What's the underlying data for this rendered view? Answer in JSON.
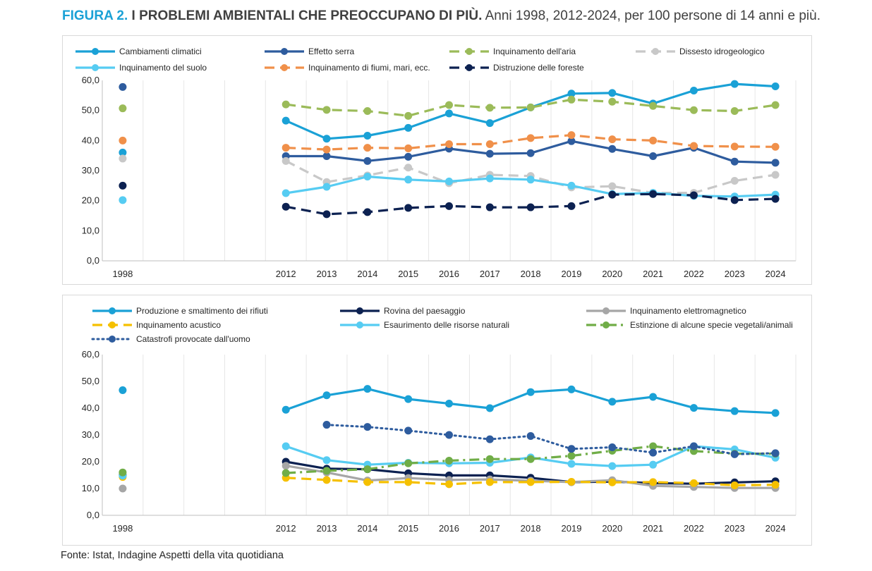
{
  "figure": {
    "label": "FIGURA 2.",
    "title": "I PROBLEMI AMBIENTALI CHE PREOCCUPANO DI PIÙ.",
    "subtitle": "Anni 1998, 2012-2024, per 100 persone di 14 anni e più."
  },
  "source": "Fonte: Istat, Indagine Aspetti della vita quotidiana",
  "chart_data": [
    {
      "type": "line",
      "x": [
        "1998",
        "2012",
        "2013",
        "2014",
        "2015",
        "2016",
        "2017",
        "2018",
        "2019",
        "2020",
        "2021",
        "2022",
        "2023",
        "2024"
      ],
      "ylim": [
        0,
        60
      ],
      "yticks": [
        "0,0",
        "10,0",
        "20,0",
        "30,0",
        "40,0",
        "50,0",
        "60,0"
      ],
      "grid": true,
      "legend_position": "top",
      "series": [
        {
          "name": "Cambiamenti climatici",
          "color": "#1aa1d6",
          "style": "solid",
          "values": [
            36.0,
            46.6,
            40.6,
            41.6,
            44.2,
            49.0,
            45.8,
            51.0,
            55.6,
            55.8,
            52.3,
            56.6,
            58.8,
            58.0
          ]
        },
        {
          "name": "Effetto serra",
          "color": "#2e5c9e",
          "style": "solid",
          "values": [
            57.8,
            34.8,
            34.8,
            33.2,
            34.6,
            37.3,
            35.6,
            35.8,
            39.8,
            37.2,
            34.8,
            37.6,
            33.0,
            32.6
          ]
        },
        {
          "name": "Inquinamento dell'aria",
          "color": "#9bbb59",
          "style": "dashed",
          "values": [
            50.7,
            52.0,
            50.2,
            49.8,
            48.2,
            51.8,
            50.9,
            51.0,
            53.6,
            52.9,
            51.5,
            50.1,
            49.8,
            51.8
          ]
        },
        {
          "name": "Dissesto idrogeologico",
          "color": "#c8c8c8",
          "style": "dashed",
          "values": [
            34.0,
            33.2,
            26.2,
            28.4,
            31.0,
            25.8,
            28.6,
            28.2,
            24.4,
            24.8,
            22.6,
            22.6,
            26.6,
            28.6
          ]
        },
        {
          "name": "Inquinamento del suolo",
          "color": "#56ccf2",
          "style": "solid",
          "values": [
            20.2,
            22.5,
            24.6,
            28.0,
            27.0,
            26.4,
            27.4,
            27.0,
            25.0,
            22.2,
            22.6,
            21.6,
            21.4,
            22.0
          ]
        },
        {
          "name": "Inquinamento di fiumi, mari, ecc.",
          "color": "#f0904a",
          "style": "dashed",
          "values": [
            40.0,
            37.6,
            37.0,
            37.6,
            37.4,
            38.8,
            38.8,
            40.8,
            41.8,
            40.4,
            40.0,
            38.2,
            38.0,
            37.9
          ]
        },
        {
          "name": "Distruzione delle foreste",
          "color": "#0c2151",
          "style": "dashed",
          "values": [
            25.0,
            18.0,
            15.5,
            16.2,
            17.6,
            18.2,
            17.8,
            17.8,
            18.2,
            22.0,
            22.2,
            21.8,
            20.2,
            20.6
          ]
        }
      ]
    },
    {
      "type": "line",
      "x": [
        "1998",
        "2012",
        "2013",
        "2014",
        "2015",
        "2016",
        "2017",
        "2018",
        "2019",
        "2020",
        "2021",
        "2022",
        "2023",
        "2024"
      ],
      "ylim": [
        0,
        60
      ],
      "yticks": [
        "0,0",
        "10,0",
        "20,0",
        "30,0",
        "40,0",
        "50,0",
        "60,0"
      ],
      "grid": true,
      "legend_position": "top",
      "series": [
        {
          "name": "Produzione e smaltimento dei rifiuti",
          "color": "#1aa1d6",
          "style": "solid",
          "values": [
            46.7,
            39.4,
            44.8,
            47.2,
            43.4,
            41.7,
            40.0,
            46.0,
            47.0,
            42.4,
            44.2,
            40.1,
            38.9,
            38.2
          ]
        },
        {
          "name": "Rovina del paesaggio",
          "color": "#0c2151",
          "style": "solid",
          "values": [
            15.0,
            20.0,
            17.4,
            17.2,
            15.7,
            14.9,
            14.9,
            14.0,
            12.4,
            12.6,
            12.0,
            11.8,
            12.3,
            12.7
          ]
        },
        {
          "name": "Inquinamento elettromagnetico",
          "color": "#a6a6a6",
          "style": "solid",
          "values": [
            10.0,
            18.5,
            16.0,
            13.0,
            13.9,
            13.2,
            13.4,
            12.9,
            12.4,
            13.1,
            11.0,
            10.6,
            10.2,
            10.2
          ]
        },
        {
          "name": "Inquinamento acustico",
          "color": "#f5c000",
          "style": "dashed",
          "values": [
            14.3,
            14.0,
            13.2,
            12.4,
            12.4,
            11.6,
            12.4,
            12.4,
            12.5,
            12.3,
            12.4,
            12.0,
            11.2,
            11.4
          ]
        },
        {
          "name": "Esaurimento delle  risorse  naturali",
          "color": "#56ccf2",
          "style": "solid",
          "values": [
            14.8,
            25.8,
            20.6,
            18.9,
            19.6,
            19.4,
            19.6,
            21.6,
            19.2,
            18.4,
            18.9,
            25.8,
            24.6,
            21.5
          ]
        },
        {
          "name": "Estinzione di alcune specie vegetali/animali",
          "color": "#70ad47",
          "style": "dashdot",
          "values": [
            16.0,
            15.8,
            16.6,
            17.2,
            19.4,
            20.4,
            21.0,
            21.0,
            22.2,
            24.1,
            25.8,
            24.0,
            23.0,
            23.0
          ]
        },
        {
          "name": "Catastrofi provocate dall'uomo",
          "color": "#2e5c9e",
          "style": "dotted",
          "values": [
            null,
            null,
            33.8,
            33.0,
            31.6,
            30.0,
            28.4,
            29.6,
            24.8,
            25.4,
            23.4,
            25.8,
            22.8,
            23.2
          ]
        }
      ]
    }
  ]
}
